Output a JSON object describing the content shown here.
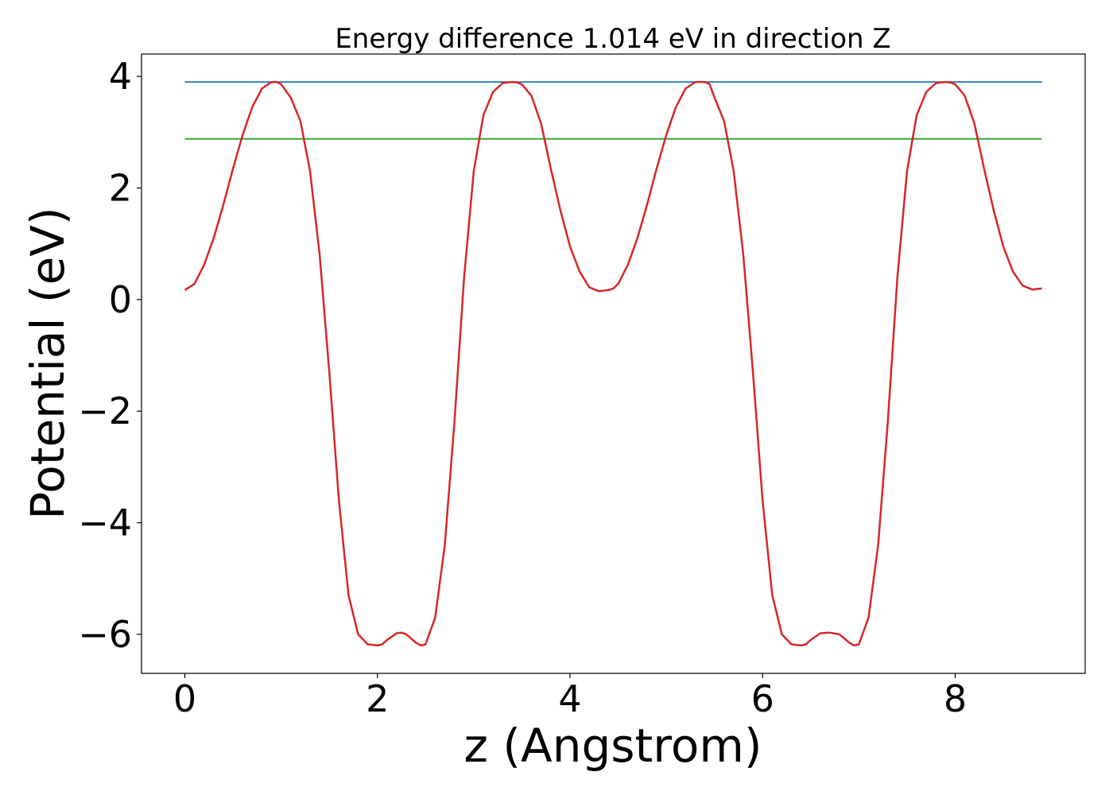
{
  "chart_data": {
    "type": "line",
    "title": "Energy difference 1.014 eV in direction Z",
    "xlabel": "z (Angstrom)",
    "ylabel": "Potential (eV)",
    "xlim": [
      -0.45,
      9.35
    ],
    "ylim": [
      -6.7,
      4.4
    ],
    "xticks": [
      0,
      2,
      4,
      6,
      8
    ],
    "xtick_labels": [
      "0",
      "2",
      "4",
      "6",
      "8"
    ],
    "yticks": [
      4,
      2,
      0,
      -2,
      -4,
      -6
    ],
    "ytick_labels": [
      "4",
      "2",
      "0",
      "−2",
      "−4",
      "−6"
    ],
    "grid": false,
    "legend": "none",
    "series": [
      {
        "color": "#1f77b4",
        "x": [
          0,
          8.9
        ],
        "y": [
          3.9,
          3.9
        ]
      },
      {
        "color": "#2ca02c",
        "x": [
          0,
          8.9
        ],
        "y": [
          2.88,
          2.88
        ]
      },
      {
        "color": "#d62728",
        "x": [
          0,
          0.1,
          0.2,
          0.3,
          0.4,
          0.5,
          0.6,
          0.7,
          0.8,
          0.9,
          0.95,
          1.0,
          1.1,
          1.2,
          1.3,
          1.4,
          1.5,
          1.6,
          1.7,
          1.8,
          1.9,
          2.0,
          2.05,
          2.1,
          2.2,
          2.25,
          2.3,
          2.4,
          2.45,
          2.5,
          2.6,
          2.7,
          2.8,
          2.9,
          3.0,
          3.1,
          3.2,
          3.3,
          3.4,
          3.45,
          3.5,
          3.6,
          3.7,
          3.8,
          3.9,
          4.0,
          4.1,
          4.2,
          4.3,
          4.4,
          4.45,
          4.5,
          4.6,
          4.7,
          4.8,
          4.9,
          5.0,
          5.1,
          5.2,
          5.3,
          5.4,
          5.45,
          5.5,
          5.6,
          5.7,
          5.8,
          5.9,
          6.0,
          6.1,
          6.2,
          6.3,
          6.4,
          6.45,
          6.5,
          6.6,
          6.7,
          6.8,
          6.9,
          6.95,
          7.0,
          7.1,
          7.2,
          7.3,
          7.4,
          7.5,
          7.6,
          7.7,
          7.8,
          7.9,
          7.95,
          8.0,
          8.1,
          8.2,
          8.3,
          8.4,
          8.5,
          8.6,
          8.7,
          8.8,
          8.9
        ],
        "y": [
          0.17,
          0.28,
          0.62,
          1.1,
          1.7,
          2.35,
          2.95,
          3.45,
          3.78,
          3.9,
          3.9,
          3.86,
          3.62,
          3.2,
          2.3,
          0.8,
          -1.3,
          -3.6,
          -5.3,
          -6.0,
          -6.18,
          -6.2,
          -6.18,
          -6.1,
          -5.98,
          -5.97,
          -6.0,
          -6.15,
          -6.2,
          -6.18,
          -5.7,
          -4.4,
          -2.2,
          0.4,
          2.3,
          3.3,
          3.72,
          3.88,
          3.9,
          3.89,
          3.86,
          3.65,
          3.15,
          2.35,
          1.6,
          0.95,
          0.5,
          0.22,
          0.15,
          0.17,
          0.2,
          0.28,
          0.62,
          1.1,
          1.7,
          2.35,
          2.95,
          3.45,
          3.78,
          3.9,
          3.9,
          3.86,
          3.62,
          3.2,
          2.3,
          0.8,
          -1.3,
          -3.6,
          -5.3,
          -6.0,
          -6.18,
          -6.2,
          -6.18,
          -6.1,
          -5.98,
          -5.97,
          -6.0,
          -6.15,
          -6.2,
          -6.18,
          -5.7,
          -4.4,
          -2.2,
          0.4,
          2.3,
          3.3,
          3.72,
          3.88,
          3.9,
          3.89,
          3.86,
          3.65,
          3.15,
          2.35,
          1.6,
          0.95,
          0.5,
          0.25,
          0.18,
          0.2
        ]
      }
    ]
  }
}
